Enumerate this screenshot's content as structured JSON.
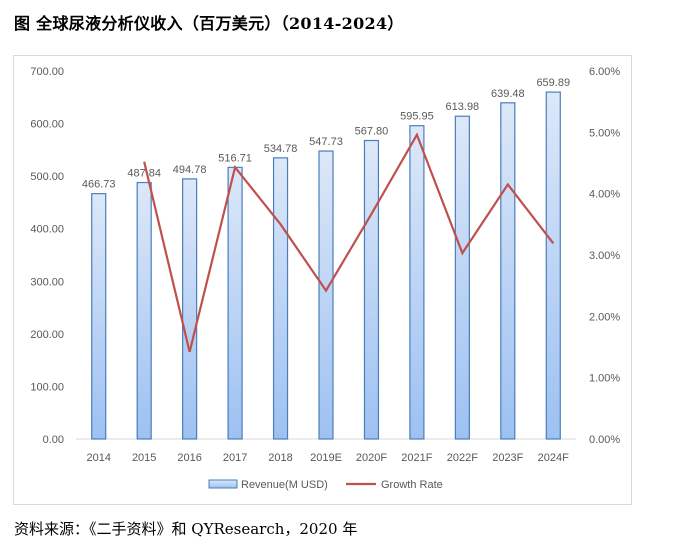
{
  "title": "图 全球尿液分析仪收入（百万美元）（2014-2024）",
  "source": "资料来源：《二手资料》和 QYResearch，2020 年",
  "colors": {
    "bar_fill_top": "#dde8f8",
    "bar_fill_bottom": "#9dc1f2",
    "bar_stroke": "#4a7ebb",
    "line": "#c0504d",
    "text": "#595959",
    "axis": "#d9d9d9"
  },
  "chart_data": {
    "type": "bar+line",
    "categories": [
      "2014",
      "2015",
      "2016",
      "2017",
      "2018",
      "2019E",
      "2020F",
      "2021F",
      "2022F",
      "2023F",
      "2024F"
    ],
    "series": [
      {
        "name": "Revenue(M USD)",
        "type": "bar",
        "axis": "left",
        "values": [
          466.73,
          487.84,
          494.78,
          516.71,
          534.78,
          547.73,
          567.8,
          595.95,
          613.98,
          639.48,
          659.89
        ],
        "labels": [
          "466.73",
          "487.84",
          "494.78",
          "516.71",
          "534.78",
          "547.73",
          "567.80",
          "595.95",
          "613.98",
          "639.48",
          "659.89"
        ]
      },
      {
        "name": "Growth Rate",
        "type": "line",
        "axis": "right",
        "values": [
          null,
          4.52,
          1.42,
          4.43,
          3.5,
          2.42,
          3.67,
          4.96,
          3.03,
          4.15,
          3.19
        ]
      }
    ],
    "y_left": {
      "range": [
        0,
        700
      ],
      "ticks": [
        "0.00",
        "100.00",
        "200.00",
        "300.00",
        "400.00",
        "500.00",
        "600.00",
        "700.00"
      ]
    },
    "y_right": {
      "range": [
        0,
        6
      ],
      "ticks": [
        "0.00%",
        "1.00%",
        "2.00%",
        "3.00%",
        "4.00%",
        "5.00%",
        "6.00%"
      ]
    },
    "grid": false,
    "legend": "bottom"
  }
}
